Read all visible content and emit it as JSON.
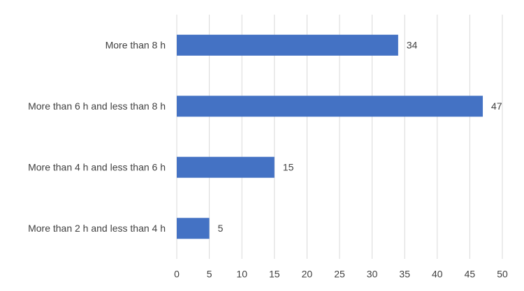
{
  "chart_data": {
    "type": "bar",
    "orientation": "horizontal",
    "categories": [
      "More than 8 h",
      "More than 6 h and less than 8 h",
      "More than 4 h and less than 6 h",
      "More than 2 h and less than 4 h"
    ],
    "values": [
      34,
      47,
      15,
      5
    ],
    "color": "#4472c4",
    "xlim": [
      0,
      50
    ],
    "xticks": [
      0,
      5,
      10,
      15,
      20,
      25,
      30,
      35,
      40,
      45,
      50
    ],
    "grid": true,
    "data_labels": true
  }
}
